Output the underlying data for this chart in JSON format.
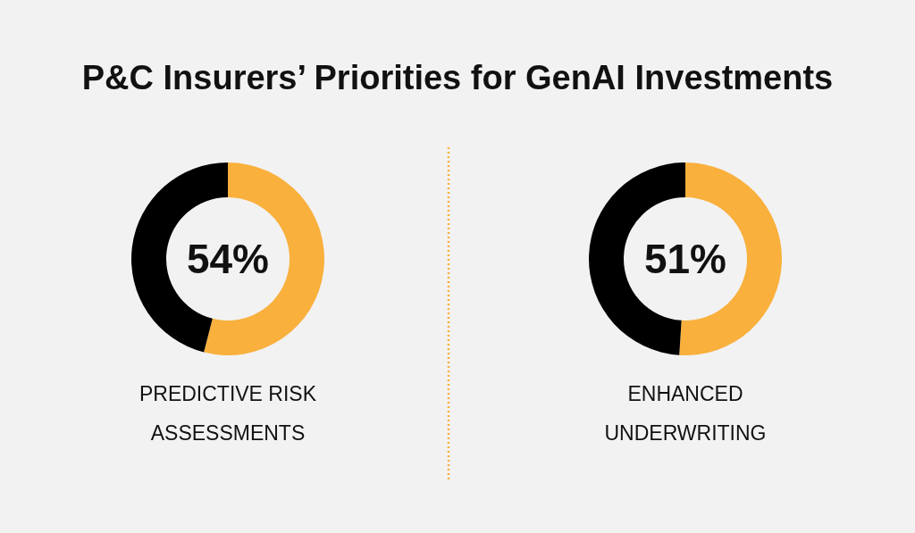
{
  "chart_data": [
    {
      "type": "donut",
      "title": "P&C Insurers’ Priorities for GenAI Investments",
      "categories": [
        null,
        null
      ],
      "values": [
        54,
        46
      ],
      "colors": [
        "#f9b03c",
        "#000000"
      ],
      "value_labels": [
        "54%",
        null
      ],
      "xlabel": "PREDICTIVE RISK ASSESSMENTS"
    },
    {
      "type": "donut",
      "categories": [
        null,
        null
      ],
      "values": [
        51,
        49
      ],
      "colors": [
        "#f9b03c",
        "#000000"
      ],
      "value_labels": [
        "51%",
        null
      ],
      "xlabel": "ENHANCED UNDERWRITING"
    }
  ]
}
